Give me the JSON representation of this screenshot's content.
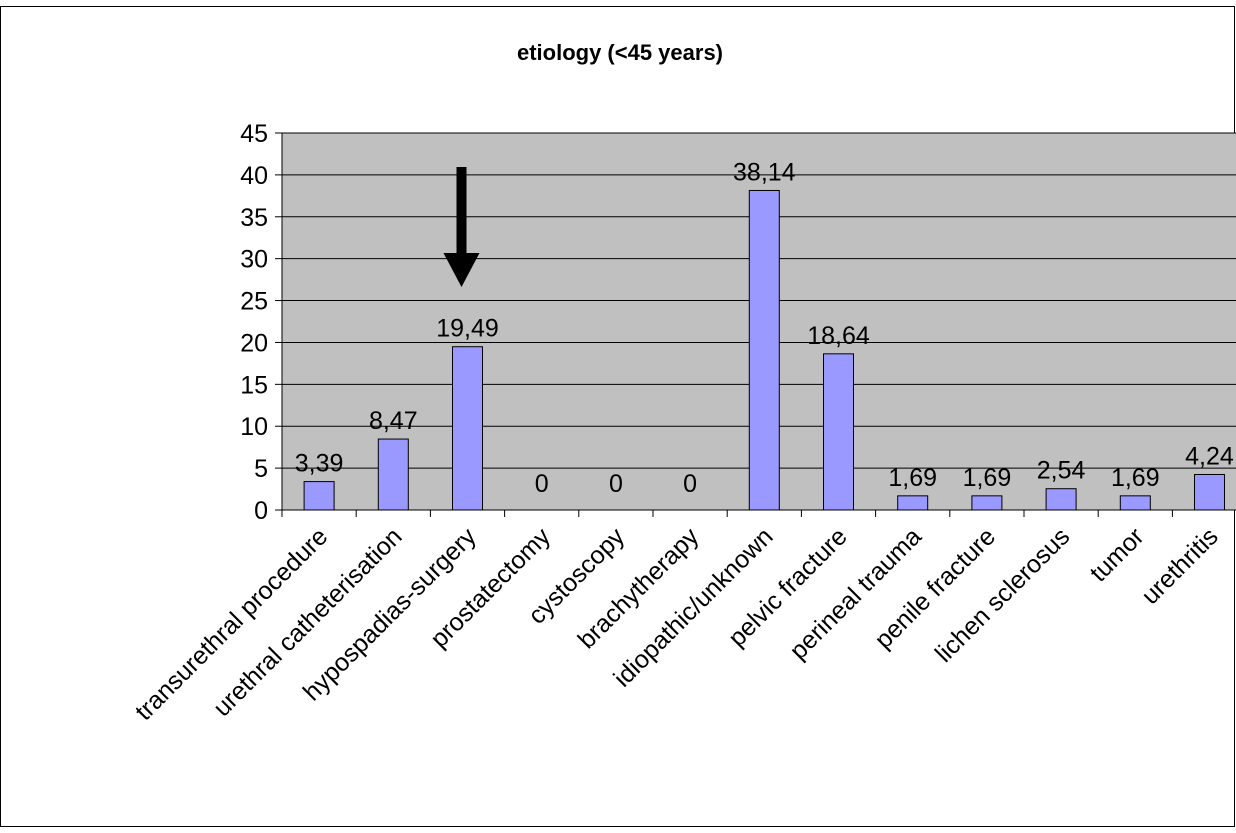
{
  "chart_data": {
    "type": "bar",
    "title": "etiology (<45 years)",
    "xlabel": "",
    "ylabel": "",
    "ylim": [
      0,
      45
    ],
    "y_ticks": [
      0,
      5,
      10,
      15,
      20,
      25,
      30,
      35,
      40,
      45
    ],
    "grid": true,
    "legend": "none",
    "categories": [
      "transurethral procedure",
      "urethral catheterisation",
      "hypospadias-surgery",
      "prostatectomy",
      "cystoscopy",
      "brachytherapy",
      "idiopathic/unknown",
      "pelvic fracture",
      "perineal trauma",
      "penile fracture",
      "lichen sclerosus",
      "tumor",
      "urethritis"
    ],
    "values": [
      3.39,
      8.47,
      19.49,
      0,
      0,
      0,
      38.14,
      18.64,
      1.69,
      1.69,
      2.54,
      1.69,
      4.24
    ],
    "data_labels": [
      "3,39",
      "8,47",
      "19,49",
      "0",
      "0",
      "0",
      "38,14",
      "18,64",
      "1,69",
      "1,69",
      "2,54",
      "1,69",
      "4,24"
    ],
    "annotations": [
      {
        "type": "arrow",
        "direction": "down",
        "target_category": "hypospadias-surgery"
      }
    ]
  },
  "colors": {
    "bar_fill": "#9999ff",
    "bar_stroke": "#000000",
    "plot_background": "#c0c0c0",
    "gridline": "#000000",
    "arrow": "#000000"
  }
}
